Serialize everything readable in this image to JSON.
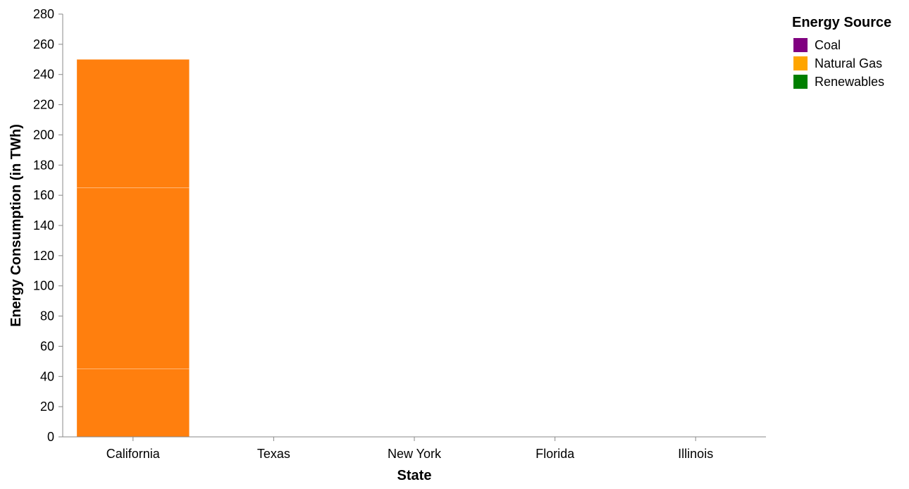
{
  "chart_data": {
    "type": "bar",
    "stacked": true,
    "xlabel": "State",
    "ylabel": "Energy Consumption (in TWh)",
    "categories": [
      "California",
      "Texas",
      "New York",
      "Florida",
      "Illinois"
    ],
    "ylim": [
      0,
      280
    ],
    "yticks": [
      0,
      20,
      40,
      60,
      80,
      100,
      120,
      140,
      160,
      180,
      200,
      220,
      240,
      260,
      280
    ],
    "grid": false,
    "bar_color": "#ff7f0e",
    "series": [
      {
        "name": "Coal",
        "values": [
          45,
          0,
          0,
          0,
          0
        ]
      },
      {
        "name": "Natural Gas",
        "values": [
          120,
          0,
          0,
          0,
          0
        ]
      },
      {
        "name": "Renewables",
        "values": [
          85,
          0,
          0,
          0,
          0
        ]
      }
    ],
    "legend": {
      "title": "Energy Source",
      "position": "top-right",
      "items": [
        {
          "label": "Coal",
          "color": "#800080"
        },
        {
          "label": "Natural Gas",
          "color": "#ffa500"
        },
        {
          "label": "Renewables",
          "color": "#008000"
        }
      ]
    }
  }
}
